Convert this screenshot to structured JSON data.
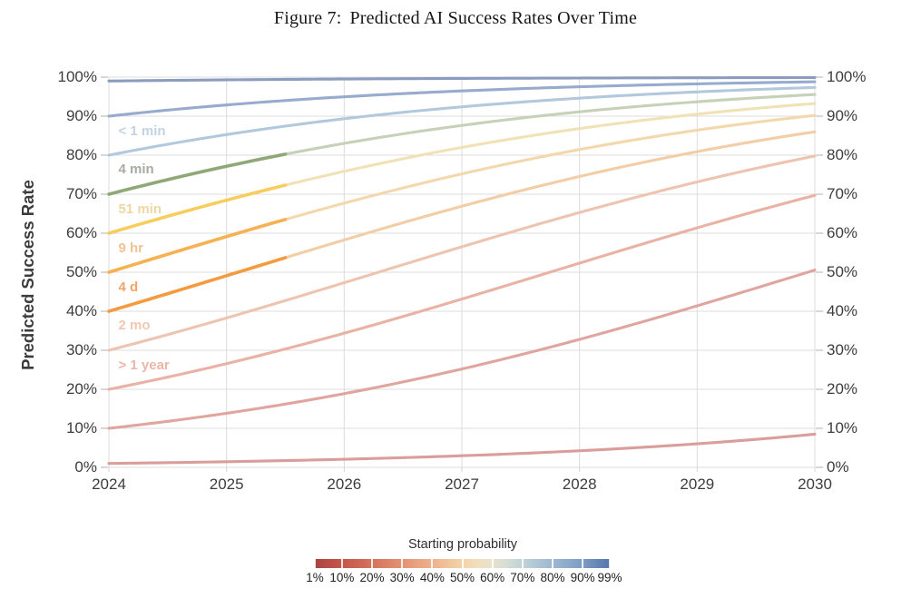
{
  "title": {
    "figure_label": "Figure 7:",
    "text": "Predicted AI Success Rates Over Time"
  },
  "axes": {
    "y_label": "Predicted Success Rate",
    "y_ticks": [
      "0%",
      "10%",
      "20%",
      "30%",
      "40%",
      "50%",
      "60%",
      "70%",
      "80%",
      "90%",
      "100%"
    ],
    "x_ticks": [
      "2024",
      "2025",
      "2026",
      "2027",
      "2028",
      "2029",
      "2030"
    ]
  },
  "chart_data": {
    "type": "line",
    "title": "Figure 7: Predicted AI Success Rates Over Time",
    "xlabel": "",
    "ylabel": "Predicted Success Rate",
    "x_years": [
      2024,
      2025,
      2026,
      2027,
      2028,
      2029,
      2030
    ],
    "xlim": [
      2024,
      2030
    ],
    "ylim_pct": [
      0,
      100
    ],
    "grid": true,
    "model": "logistic growth: odds multiply by ~1.45x per year from the 2024 starting probability",
    "odds_growth_per_year": 1.4476,
    "solid_segment_years": [
      2024,
      2025.5
    ],
    "series": [
      {
        "name": "99%",
        "start_pct": 99,
        "task_label": null,
        "color": "#8c9cc0",
        "solid_color": null,
        "values_pct": [
          99.0,
          99.3,
          99.5,
          99.7,
          99.8,
          99.8,
          99.9
        ]
      },
      {
        "name": "90%",
        "start_pct": 90,
        "task_label": null,
        "color": "#96abce",
        "solid_color": null,
        "values_pct": [
          90.0,
          92.9,
          95.0,
          96.5,
          97.5,
          98.3,
          98.8
        ]
      },
      {
        "name": "80%",
        "start_pct": 80,
        "task_label": "< 1 min",
        "color": "#b2c8dd",
        "solid_color": null,
        "values_pct": [
          80.0,
          85.3,
          89.3,
          92.4,
          94.6,
          96.2,
          97.4
        ]
      },
      {
        "name": "70%",
        "start_pct": 70,
        "task_label": "4 min",
        "color": "#c6d1b8",
        "solid_color": "#90a878",
        "values_pct": [
          70.0,
          77.2,
          83.0,
          87.6,
          91.1,
          93.7,
          95.5
        ]
      },
      {
        "name": "60%",
        "start_pct": 60,
        "task_label": "51 min",
        "color": "#f0e2b5",
        "solid_color": "#f7cd5e",
        "values_pct": [
          60.0,
          68.5,
          75.9,
          82.0,
          86.8,
          90.5,
          93.2
        ]
      },
      {
        "name": "50%",
        "start_pct": 50,
        "task_label": "9 hr",
        "color": "#f4d8ad",
        "solid_color": "#f6b152",
        "values_pct": [
          50.0,
          59.1,
          67.7,
          75.2,
          81.5,
          86.4,
          90.2
        ]
      },
      {
        "name": "40%",
        "start_pct": 40,
        "task_label": "4 d",
        "color": "#f2cda5",
        "solid_color": "#f39b40",
        "values_pct": [
          40.0,
          49.1,
          58.3,
          66.9,
          74.5,
          80.9,
          86.0
        ]
      },
      {
        "name": "30%",
        "start_pct": 30,
        "task_label": "2 mo",
        "color": "#eec4b0",
        "solid_color": null,
        "values_pct": [
          30.0,
          38.3,
          47.3,
          56.5,
          65.3,
          73.1,
          79.8
        ]
      },
      {
        "name": "20%",
        "start_pct": 20,
        "task_label": "> 1 year",
        "color": "#e9b2a4",
        "solid_color": null,
        "values_pct": [
          20.0,
          26.6,
          34.4,
          43.1,
          52.3,
          61.4,
          69.7
        ]
      },
      {
        "name": "10%",
        "start_pct": 10,
        "task_label": null,
        "color": "#e0a59e",
        "solid_color": null,
        "values_pct": [
          10.0,
          13.9,
          18.9,
          25.2,
          32.8,
          41.4,
          50.6
        ]
      },
      {
        "name": "1%",
        "start_pct": 1,
        "task_label": null,
        "color": "#d99e99",
        "solid_color": null,
        "values_pct": [
          1.0,
          1.4,
          2.1,
          3.0,
          4.2,
          6.0,
          8.5
        ]
      }
    ],
    "curve_labels": [
      {
        "text": "< 1 min",
        "series": "80%",
        "color": "#c2d2e3",
        "x_year": 2024.05,
        "y_pct": 85.7
      },
      {
        "text": "4 min",
        "series": "70%",
        "color": "#a5ada2",
        "x_year": 2024.05,
        "y_pct": 76.1
      },
      {
        "text": "51 min",
        "series": "60%",
        "color": "#eed7a4",
        "x_year": 2024.05,
        "y_pct": 65.9
      },
      {
        "text": "9 hr",
        "series": "50%",
        "color": "#f2c291",
        "x_year": 2024.05,
        "y_pct": 55.9
      },
      {
        "text": "4 d",
        "series": "40%",
        "color": "#f0a666",
        "x_year": 2024.05,
        "y_pct": 45.9
      },
      {
        "text": "2 mo",
        "series": "30%",
        "color": "#f0c7b3",
        "x_year": 2024.05,
        "y_pct": 36.1
      },
      {
        "text": "> 1 year",
        "series": "20%",
        "color": "#ebb6a9",
        "x_year": 2024.05,
        "y_pct": 25.9
      }
    ]
  },
  "legend": {
    "title": "Starting probability",
    "tick_values": [
      1,
      10,
      20,
      30,
      40,
      50,
      60,
      70,
      80,
      90,
      99
    ],
    "tick_labels": [
      "1%",
      "10%",
      "20%",
      "30%",
      "40%",
      "50%",
      "60%",
      "70%",
      "80%",
      "90%",
      "99%"
    ],
    "gradient_stops": [
      {
        "value": 1,
        "color": "#a84440"
      },
      {
        "value": 5,
        "color": "#b84b45"
      },
      {
        "value": 10,
        "color": "#c4554c"
      },
      {
        "value": 20,
        "color": "#d5735c"
      },
      {
        "value": 30,
        "color": "#e39273"
      },
      {
        "value": 40,
        "color": "#eeb28c"
      },
      {
        "value": 50,
        "color": "#f3d3a9"
      },
      {
        "value": 55,
        "color": "#f1dfbd"
      },
      {
        "value": 60,
        "color": "#e7e3cb"
      },
      {
        "value": 65,
        "color": "#d4dcd4"
      },
      {
        "value": 70,
        "color": "#c0d2d9"
      },
      {
        "value": 80,
        "color": "#9cb8d0"
      },
      {
        "value": 90,
        "color": "#7d9cc4"
      },
      {
        "value": 99,
        "color": "#5476aa"
      }
    ]
  }
}
